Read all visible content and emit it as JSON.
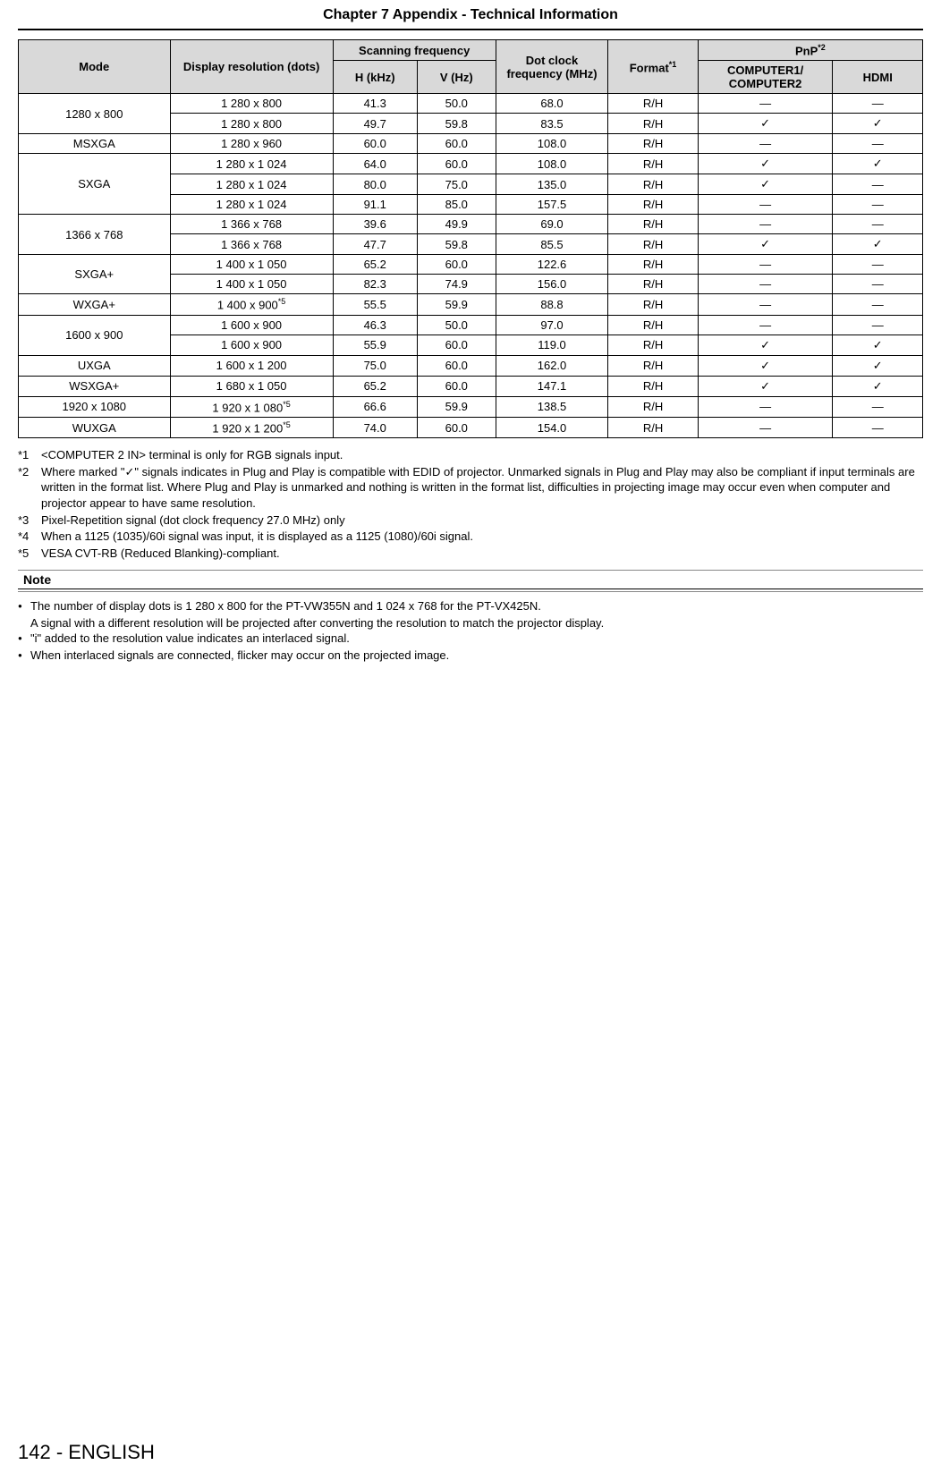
{
  "header": {
    "chapter_title": "Chapter 7   Appendix - Technical Information"
  },
  "table": {
    "headers": {
      "mode": "Mode",
      "resolution": "Display resolution (dots)",
      "scanning": "Scanning frequency",
      "hkhz": "H (kHz)",
      "vhz": "V (Hz)",
      "dotclock": "Dot clock frequency (MHz)",
      "format_pre": "Format",
      "format_sup": "*1",
      "pnp_pre": "PnP",
      "pnp_sup": "*2",
      "comp": "COMPUTER1/ COMPUTER2",
      "hdmi": "HDMI"
    },
    "rows": [
      {
        "mode": "1280 x 800",
        "modeRowspan": 2,
        "resolution": "1 280 x 800",
        "hkhz": "41.3",
        "vhz": "50.0",
        "dotclock": "68.0",
        "format": "R/H",
        "comp": "―",
        "hdmi": "―"
      },
      {
        "resolution": "1 280 x 800",
        "hkhz": "49.7",
        "vhz": "59.8",
        "dotclock": "83.5",
        "format": "R/H",
        "comp": "✓",
        "hdmi": "✓"
      },
      {
        "mode": "MSXGA",
        "resolution": "1 280 x 960",
        "hkhz": "60.0",
        "vhz": "60.0",
        "dotclock": "108.0",
        "format": "R/H",
        "comp": "―",
        "hdmi": "―"
      },
      {
        "mode": "SXGA",
        "modeRowspan": 3,
        "resolution": "1 280 x 1 024",
        "hkhz": "64.0",
        "vhz": "60.0",
        "dotclock": "108.0",
        "format": "R/H",
        "comp": "✓",
        "hdmi": "✓"
      },
      {
        "resolution": "1 280 x 1 024",
        "hkhz": "80.0",
        "vhz": "75.0",
        "dotclock": "135.0",
        "format": "R/H",
        "comp": "✓",
        "hdmi": "―"
      },
      {
        "resolution": "1 280 x 1 024",
        "hkhz": "91.1",
        "vhz": "85.0",
        "dotclock": "157.5",
        "format": "R/H",
        "comp": "―",
        "hdmi": "―"
      },
      {
        "mode": "1366 x 768",
        "modeRowspan": 2,
        "resolution": "1 366 x 768",
        "hkhz": "39.6",
        "vhz": "49.9",
        "dotclock": "69.0",
        "format": "R/H",
        "comp": "―",
        "hdmi": "―"
      },
      {
        "resolution": "1 366 x 768",
        "hkhz": "47.7",
        "vhz": "59.8",
        "dotclock": "85.5",
        "format": "R/H",
        "comp": "✓",
        "hdmi": "✓"
      },
      {
        "mode": "SXGA+",
        "modeRowspan": 2,
        "resolution": "1 400 x 1 050",
        "hkhz": "65.2",
        "vhz": "60.0",
        "dotclock": "122.6",
        "format": "R/H",
        "comp": "―",
        "hdmi": "―"
      },
      {
        "resolution": "1 400 x 1 050",
        "hkhz": "82.3",
        "vhz": "74.9",
        "dotclock": "156.0",
        "format": "R/H",
        "comp": "―",
        "hdmi": "―"
      },
      {
        "mode": "WXGA+",
        "resolution": "1 400 x 900",
        "resSup": "*5",
        "hkhz": "55.5",
        "vhz": "59.9",
        "dotclock": "88.8",
        "format": "R/H",
        "comp": "―",
        "hdmi": "―"
      },
      {
        "mode": "1600 x 900",
        "modeRowspan": 2,
        "resolution": "1 600 x 900",
        "hkhz": "46.3",
        "vhz": "50.0",
        "dotclock": "97.0",
        "format": "R/H",
        "comp": "―",
        "hdmi": "―"
      },
      {
        "resolution": "1 600 x 900",
        "hkhz": "55.9",
        "vhz": "60.0",
        "dotclock": "119.0",
        "format": "R/H",
        "comp": "✓",
        "hdmi": "✓"
      },
      {
        "mode": "UXGA",
        "resolution": "1 600 x 1 200",
        "hkhz": "75.0",
        "vhz": "60.0",
        "dotclock": "162.0",
        "format": "R/H",
        "comp": "✓",
        "hdmi": "✓"
      },
      {
        "mode": "WSXGA+",
        "resolution": "1 680 x 1 050",
        "hkhz": "65.2",
        "vhz": "60.0",
        "dotclock": "147.1",
        "format": "R/H",
        "comp": "✓",
        "hdmi": "✓"
      },
      {
        "mode": "1920 x 1080",
        "resolution": "1 920 x 1 080",
        "resSup": "*5",
        "hkhz": "66.6",
        "vhz": "59.9",
        "dotclock": "138.5",
        "format": "R/H",
        "comp": "―",
        "hdmi": "―"
      },
      {
        "mode": "WUXGA",
        "resolution": "1 920 x 1 200",
        "resSup": "*5",
        "hkhz": "74.0",
        "vhz": "60.0",
        "dotclock": "154.0",
        "format": "R/H",
        "comp": "―",
        "hdmi": "―"
      }
    ]
  },
  "footnotes": [
    {
      "label": "*1",
      "text": "<COMPUTER 2 IN> terminal is only for RGB signals input."
    },
    {
      "label": "*2",
      "text": "Where marked \"✓\" signals indicates in Plug and Play is compatible with EDID of projector. Unmarked signals in Plug and Play may also be compliant if input terminals are written in the format list. Where Plug and Play is unmarked and nothing is written in the format list, difficulties in projecting image may occur even when computer and projector appear to have same resolution."
    },
    {
      "label": "*3",
      "text": "Pixel-Repetition signal (dot clock frequency 27.0 MHz) only"
    },
    {
      "label": "*4",
      "text": "When a 1125 (1035)/60i signal was input, it is displayed as a 1125 (1080)/60i signal."
    },
    {
      "label": "*5",
      "text": "VESA CVT-RB (Reduced Blanking)-compliant."
    }
  ],
  "note": {
    "header": "Note",
    "items": [
      {
        "text": "The number of display dots is 1 280 x 800 for the PT-VW355N and 1 024 x 768 for the PT-VX425N.",
        "sub": "A signal with a different resolution will be projected after converting the resolution to match the projector display."
      },
      {
        "text": "\"i\" added to the resolution value indicates an interlaced signal."
      },
      {
        "text": "When interlaced signals are connected, flicker may occur on the projected image."
      }
    ]
  },
  "footer": {
    "page_number": "142 - ENGLISH"
  },
  "styling": {
    "header_bg_color": "#d9d9d9",
    "border_color": "#000000",
    "body_font": "Arial, Helvetica, sans-serif",
    "body_font_size": 13,
    "header_font_size": 16,
    "footer_font_size": 22,
    "background_color": "#ffffff"
  }
}
